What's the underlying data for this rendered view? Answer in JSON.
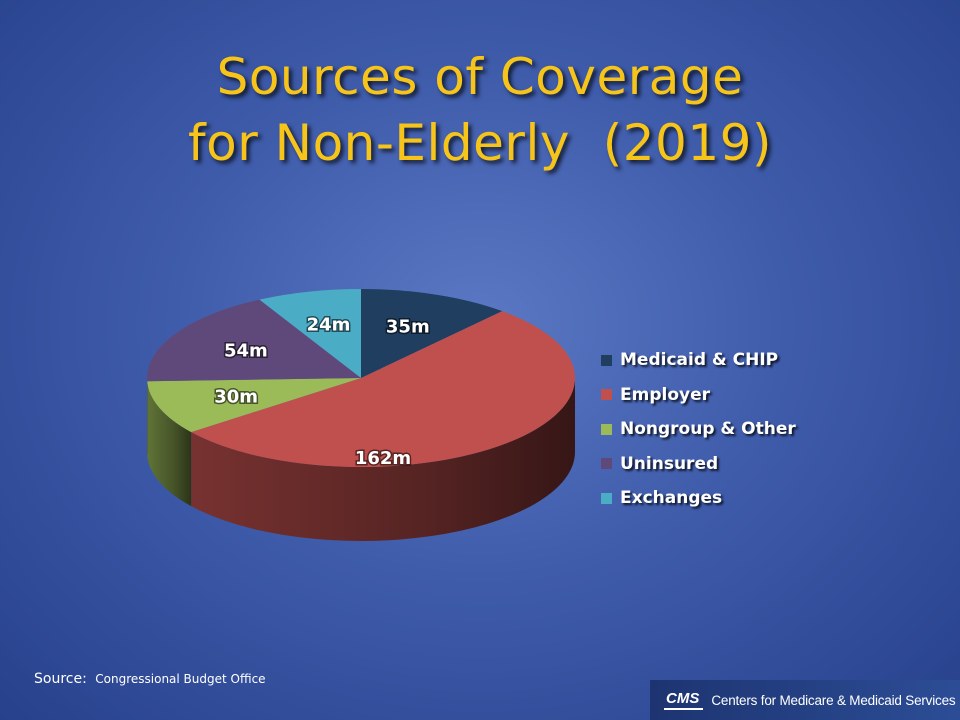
{
  "title": {
    "line1": "Sources of Coverage",
    "line2": "for Non-Elderly  (2019)"
  },
  "chart_data": {
    "type": "pie",
    "title": "Sources of Coverage for Non-Elderly  (2019)",
    "legend_placement": "right",
    "categories": [
      "Medicaid & CHIP",
      "Employer",
      "Nongroup & Other",
      "Uninsured",
      "Exchanges"
    ],
    "values": [
      35,
      162,
      30,
      54,
      24
    ],
    "value_labels": [
      "35m",
      "162m",
      "30m",
      "54m",
      "24m"
    ],
    "unit": "m",
    "colors": [
      "#1f3e60",
      "#c0504d",
      "#9bbb59",
      "#5f497a",
      "#4bacc6"
    ]
  },
  "source": {
    "prefix": "Source:",
    "text": "Congressional Budget Office"
  },
  "footer": {
    "logo": "CMS",
    "name": "Centers for Medicare & Medicaid Services"
  }
}
